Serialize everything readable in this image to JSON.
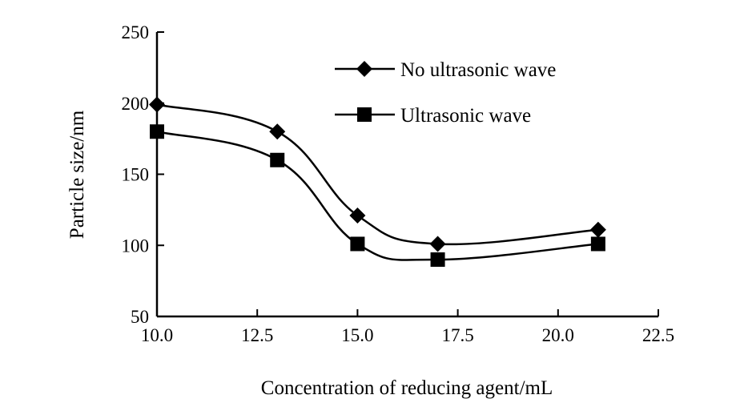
{
  "colors": {
    "background": "#ffffff",
    "ink": "#000000"
  },
  "chart_data": {
    "type": "line",
    "title": "",
    "xlabel": "Concentration of reducing agent/mL",
    "ylabel": "Particle size/nm",
    "xlim": [
      10.0,
      22.5
    ],
    "ylim": [
      50,
      250
    ],
    "xticks": [
      "10.0",
      "12.5",
      "15.0",
      "17.5",
      "20.0",
      "22.5"
    ],
    "yticks": [
      "50",
      "100",
      "150",
      "200",
      "250"
    ],
    "grid": false,
    "legend_position": "top-right",
    "series": [
      {
        "name": "No ultrasonic wave",
        "marker": "diamond",
        "x": [
          10,
          13,
          15,
          17,
          21
        ],
        "y": [
          199,
          180,
          121,
          101,
          111
        ]
      },
      {
        "name": "Ultrasonic wave",
        "marker": "square",
        "x": [
          10,
          13,
          15,
          17,
          21
        ],
        "y": [
          180,
          160,
          101,
          90,
          101
        ]
      }
    ]
  }
}
